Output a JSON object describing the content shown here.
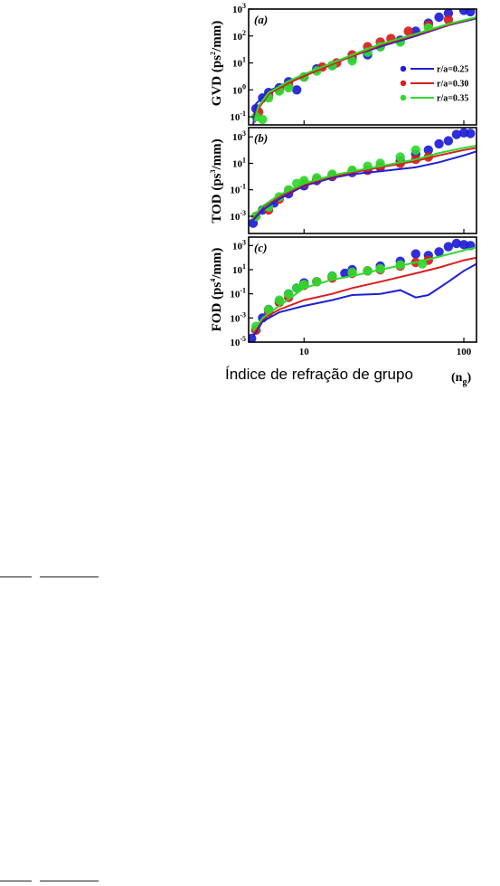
{
  "chart_data": [
    {
      "type": "scatter",
      "panel_label": "(a)",
      "ylabel": "GVD (ps2/mm)",
      "ylabel_parts": [
        "GVD (ps",
        "2",
        "/mm)"
      ],
      "yscale": "log",
      "xscale": "log",
      "xlim": [
        4.5,
        120
      ],
      "ylim": [
        0.05,
        1000
      ],
      "yticks": [
        {
          "base": "10",
          "exp": "3",
          "value": 1000
        },
        {
          "base": "10",
          "exp": "2",
          "value": 100
        },
        {
          "base": "10",
          "exp": "1",
          "value": 10
        },
        {
          "base": "10",
          "exp": "0",
          "value": 1
        },
        {
          "base": "10",
          "exp": "-1",
          "value": 0.1
        }
      ],
      "legend": {
        "placement": "center-right",
        "entries": [
          "r/a=0.25",
          "r/a=0.30",
          "r/a=0.35"
        ]
      },
      "series": [
        {
          "name": "r/a=0.25",
          "color": "#1f1fd6",
          "points": [
            [
              5,
              0.2
            ],
            [
              5.5,
              0.5
            ],
            [
              6,
              0.8
            ],
            [
              7,
              1.2
            ],
            [
              8,
              2
            ],
            [
              9,
              1
            ],
            [
              10,
              3
            ],
            [
              12,
              6
            ],
            [
              15,
              8
            ],
            [
              20,
              15
            ],
            [
              25,
              20
            ],
            [
              30,
              40
            ],
            [
              40,
              70
            ],
            [
              50,
              150
            ],
            [
              60,
              300
            ],
            [
              70,
              500
            ],
            [
              80,
              700
            ],
            [
              100,
              900
            ],
            [
              110,
              800
            ]
          ],
          "curve": [
            [
              4.8,
              0.05
            ],
            [
              5,
              0.3
            ],
            [
              6,
              0.9
            ],
            [
              8,
              2
            ],
            [
              10,
              3.5
            ],
            [
              15,
              9
            ],
            [
              20,
              18
            ],
            [
              30,
              40
            ],
            [
              50,
              100
            ],
            [
              80,
              250
            ],
            [
              120,
              450
            ]
          ]
        },
        {
          "name": "r/a=0.30",
          "color": "#d81e1e",
          "points": [
            [
              5.2,
              0.15
            ],
            [
              6,
              0.6
            ],
            [
              7,
              1
            ],
            [
              8,
              1.5
            ],
            [
              10,
              3
            ],
            [
              13,
              7
            ],
            [
              16,
              10
            ],
            [
              20,
              20
            ],
            [
              25,
              40
            ],
            [
              30,
              60
            ],
            [
              35,
              80
            ],
            [
              45,
              150
            ],
            [
              60,
              250
            ],
            [
              80,
              400
            ]
          ],
          "curve": [
            [
              4.9,
              0.06
            ],
            [
              5,
              0.15
            ],
            [
              6,
              0.7
            ],
            [
              8,
              1.8
            ],
            [
              10,
              3.2
            ],
            [
              15,
              9
            ],
            [
              20,
              18
            ],
            [
              30,
              45
            ],
            [
              50,
              110
            ],
            [
              80,
              260
            ],
            [
              120,
              480
            ]
          ]
        },
        {
          "name": "r/a=0.35",
          "color": "#2fd92f",
          "points": [
            [
              5,
              0.1
            ],
            [
              5.5,
              0.08
            ],
            [
              6,
              0.5
            ],
            [
              7,
              0.9
            ],
            [
              8,
              1.2
            ],
            [
              10,
              3
            ],
            [
              12,
              5
            ],
            [
              15,
              8
            ],
            [
              20,
              12
            ],
            [
              25,
              25
            ],
            [
              30,
              40
            ],
            [
              40,
              60
            ],
            [
              60,
              200
            ]
          ],
          "curve": [
            [
              4.9,
              0.07
            ],
            [
              5.2,
              0.25
            ],
            [
              6,
              0.8
            ],
            [
              8,
              2.1
            ],
            [
              10,
              3.8
            ],
            [
              15,
              10
            ],
            [
              20,
              20
            ],
            [
              30,
              50
            ],
            [
              50,
              120
            ],
            [
              80,
              280
            ],
            [
              120,
              500
            ]
          ]
        }
      ]
    },
    {
      "type": "scatter",
      "panel_label": "(b)",
      "ylabel": "TOD (ps3/mm)",
      "ylabel_parts": [
        "TOD (ps",
        "3",
        "/mm)"
      ],
      "yscale": "log",
      "xscale": "log",
      "xlim": [
        4.5,
        120
      ],
      "ylim": [
        5e-05,
        5000
      ],
      "yticks": [
        {
          "base": "10",
          "exp": "3",
          "value": 1000
        },
        {
          "base": "10",
          "exp": "1",
          "value": 10
        },
        {
          "base": "10",
          "exp": "-1",
          "value": 0.1
        },
        {
          "base": "10",
          "exp": "-3",
          "value": 0.001
        }
      ],
      "series": [
        {
          "name": "r/a=0.25",
          "color": "#1f1fd6",
          "points": [
            [
              4.8,
              0.0003
            ],
            [
              5.5,
              0.003
            ],
            [
              6.5,
              0.01
            ],
            [
              8,
              0.05
            ],
            [
              10,
              0.2
            ],
            [
              12,
              0.5
            ],
            [
              15,
              1
            ],
            [
              20,
              2
            ],
            [
              25,
              3
            ],
            [
              30,
              5
            ],
            [
              40,
              15
            ],
            [
              50,
              50
            ],
            [
              60,
              100
            ],
            [
              70,
              300
            ],
            [
              80,
              500
            ],
            [
              90,
              1500
            ],
            [
              100,
              2000
            ],
            [
              110,
              1800
            ]
          ],
          "curve": [
            [
              4.8,
              0.0005
            ],
            [
              5.5,
              0.003
            ],
            [
              7,
              0.02
            ],
            [
              10,
              0.2
            ],
            [
              15,
              0.8
            ],
            [
              20,
              1.5
            ],
            [
              30,
              2.5
            ],
            [
              50,
              5
            ],
            [
              70,
              12
            ],
            [
              100,
              40
            ],
            [
              120,
              80
            ]
          ]
        },
        {
          "name": "r/a=0.30",
          "color": "#d81e1e",
          "points": [
            [
              5,
              0.001
            ],
            [
              6,
              0.003
            ],
            [
              7,
              0.02
            ],
            [
              8,
              0.08
            ],
            [
              10,
              0.3
            ],
            [
              12,
              0.6
            ],
            [
              15,
              1.2
            ],
            [
              20,
              2.5
            ],
            [
              25,
              3
            ],
            [
              30,
              6
            ],
            [
              40,
              10
            ],
            [
              50,
              20
            ],
            [
              60,
              30
            ]
          ],
          "curve": [
            [
              4.8,
              0.0008
            ],
            [
              5.5,
              0.005
            ],
            [
              7,
              0.03
            ],
            [
              10,
              0.25
            ],
            [
              15,
              1
            ],
            [
              20,
              2
            ],
            [
              30,
              5
            ],
            [
              50,
              15
            ],
            [
              70,
              40
            ],
            [
              100,
              100
            ],
            [
              120,
              150
            ]
          ]
        },
        {
          "name": "r/a=0.35",
          "color": "#2fd92f",
          "points": [
            [
              5,
              0.001
            ],
            [
              6,
              0.005
            ],
            [
              7,
              0.03
            ],
            [
              8,
              0.1
            ],
            [
              9,
              0.3
            ],
            [
              10,
              0.5
            ],
            [
              12,
              0.8
            ],
            [
              15,
              1.5
            ],
            [
              20,
              3
            ],
            [
              25,
              6
            ],
            [
              30,
              10
            ],
            [
              40,
              30
            ],
            [
              50,
              100
            ]
          ],
          "curve": [
            [
              4.8,
              0.001
            ],
            [
              5.5,
              0.006
            ],
            [
              7,
              0.04
            ],
            [
              10,
              0.3
            ],
            [
              15,
              1.2
            ],
            [
              20,
              2.5
            ],
            [
              30,
              6
            ],
            [
              50,
              20
            ],
            [
              70,
              60
            ],
            [
              100,
              150
            ],
            [
              120,
              220
            ]
          ]
        }
      ]
    },
    {
      "type": "scatter",
      "panel_label": "(c)",
      "ylabel": "FOD (ps4/mm)",
      "ylabel_parts": [
        "FOD (ps",
        "4",
        "/mm)"
      ],
      "yscale": "log",
      "xscale": "log",
      "xlim": [
        4.5,
        120
      ],
      "ylim": [
        1e-05,
        5000
      ],
      "yticks": [
        {
          "base": "10",
          "exp": "3",
          "value": 1000
        },
        {
          "base": "10",
          "exp": "1",
          "value": 10
        },
        {
          "base": "10",
          "exp": "-1",
          "value": 0.1
        },
        {
          "base": "10",
          "exp": "-3",
          "value": 0.001
        },
        {
          "base": "10",
          "exp": "-5",
          "value": 1e-05
        }
      ],
      "series": [
        {
          "name": "r/a=0.25",
          "color": "#1f1fd6",
          "points": [
            [
              4.7,
              2e-05
            ],
            [
              5,
              0.0001
            ],
            [
              5.5,
              0.001
            ],
            [
              6,
              0.005
            ],
            [
              7,
              0.02
            ],
            [
              8,
              0.1
            ],
            [
              9,
              0.3
            ],
            [
              10,
              0.8
            ],
            [
              12,
              1
            ],
            [
              15,
              3
            ],
            [
              18,
              5
            ],
            [
              20,
              10
            ],
            [
              25,
              8
            ],
            [
              30,
              20
            ],
            [
              40,
              50
            ],
            [
              50,
              200
            ],
            [
              60,
              150
            ],
            [
              70,
              300
            ],
            [
              80,
              800
            ],
            [
              90,
              1500
            ],
            [
              100,
              1200
            ],
            [
              110,
              1000
            ]
          ],
          "curve": [
            [
              4.8,
              3e-05
            ],
            [
              5.5,
              0.0005
            ],
            [
              7,
              0.003
            ],
            [
              10,
              0.01
            ],
            [
              15,
              0.03
            ],
            [
              20,
              0.08
            ],
            [
              30,
              0.1
            ],
            [
              40,
              0.2
            ],
            [
              50,
              0.05
            ],
            [
              60,
              0.08
            ],
            [
              80,
              1
            ],
            [
              100,
              8
            ],
            [
              120,
              30
            ]
          ]
        },
        {
          "name": "r/a=0.30",
          "color": "#d81e1e",
          "points": [
            [
              5,
              0.0001
            ],
            [
              6,
              0.003
            ],
            [
              7,
              0.02
            ],
            [
              8,
              0.05
            ],
            [
              10,
              0.5
            ],
            [
              12,
              1
            ],
            [
              15,
              2
            ],
            [
              20,
              5
            ],
            [
              25,
              8
            ],
            [
              30,
              10
            ],
            [
              40,
              20
            ],
            [
              50,
              40
            ],
            [
              60,
              60
            ]
          ],
          "curve": [
            [
              4.8,
              5e-05
            ],
            [
              5.5,
              0.0008
            ],
            [
              7,
              0.005
            ],
            [
              10,
              0.03
            ],
            [
              15,
              0.1
            ],
            [
              20,
              0.3
            ],
            [
              30,
              1
            ],
            [
              50,
              5
            ],
            [
              70,
              15
            ],
            [
              100,
              60
            ],
            [
              120,
              100
            ]
          ]
        },
        {
          "name": "r/a=0.35",
          "color": "#2fd92f",
          "points": [
            [
              5,
              0.0002
            ],
            [
              6,
              0.005
            ],
            [
              7,
              0.03
            ],
            [
              8,
              0.1
            ],
            [
              9,
              0.3
            ],
            [
              10,
              0.6
            ],
            [
              12,
              1
            ],
            [
              15,
              3
            ],
            [
              20,
              6
            ],
            [
              25,
              8
            ],
            [
              30,
              12
            ],
            [
              40,
              25
            ],
            [
              55,
              30
            ]
          ],
          "curve": [
            [
              4.8,
              8e-05
            ],
            [
              5.5,
              0.001
            ],
            [
              7,
              0.01
            ],
            [
              10,
              0.3
            ],
            [
              15,
              1.5
            ],
            [
              20,
              3
            ],
            [
              30,
              10
            ],
            [
              50,
              40
            ],
            [
              70,
              120
            ],
            [
              100,
              400
            ],
            [
              120,
              700
            ]
          ]
        }
      ]
    }
  ],
  "xaxis": {
    "tick_labels": [
      "10",
      "100"
    ],
    "tick_values": [
      10,
      100
    ],
    "title": "Índice de refração de grupo",
    "symbol_base": "(n",
    "symbol_sub": "g",
    "symbol_close": ")"
  }
}
